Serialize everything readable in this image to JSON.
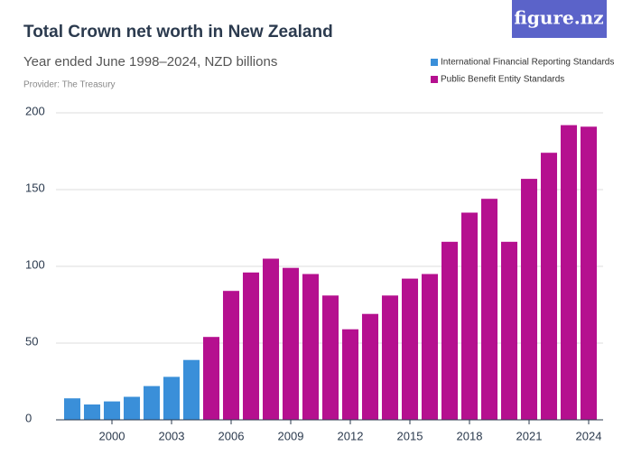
{
  "logo": "figure.nz",
  "chart_data": {
    "type": "bar",
    "title": "Total Crown net worth in New Zealand",
    "subtitle": "Year ended June 1998–2024, NZD billions",
    "provider": "Provider: The Treasury",
    "x": [
      1998,
      1999,
      2000,
      2001,
      2002,
      2003,
      2004,
      2005,
      2006,
      2007,
      2008,
      2009,
      2010,
      2011,
      2012,
      2013,
      2014,
      2015,
      2016,
      2017,
      2018,
      2019,
      2020,
      2021,
      2022,
      2023,
      2024
    ],
    "series": [
      {
        "name": "International Financial Reporting Standards",
        "color": "#3a8fd9",
        "values": [
          14,
          10,
          12,
          15,
          22,
          28,
          39,
          null,
          null,
          null,
          null,
          null,
          null,
          null,
          null,
          null,
          null,
          null,
          null,
          null,
          null,
          null,
          null,
          null,
          null,
          null,
          null
        ]
      },
      {
        "name": "Public Benefit Entity Standards",
        "color": "#b5108f",
        "values": [
          null,
          null,
          null,
          null,
          null,
          null,
          null,
          54,
          84,
          96,
          105,
          99,
          95,
          81,
          59,
          69,
          81,
          92,
          95,
          116,
          135,
          144,
          116,
          157,
          174,
          192,
          191
        ]
      }
    ],
    "xlim": [
      1997.5,
      2024.5
    ],
    "xticks": [
      2000,
      2003,
      2006,
      2009,
      2012,
      2015,
      2018,
      2021,
      2024
    ],
    "ylim": [
      0,
      200
    ],
    "yticks": [
      0,
      50,
      100,
      150,
      200
    ],
    "grid": true,
    "legend": "top-right"
  }
}
